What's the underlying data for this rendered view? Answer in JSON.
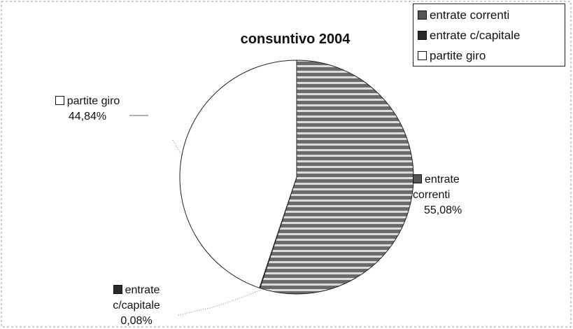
{
  "chart_data": {
    "type": "pie",
    "title": "consuntivo 2004",
    "categories": [
      "entrate correnti",
      "entrate c/capitale",
      "partite giro"
    ],
    "values": [
      55.08,
      0.08,
      44.84
    ],
    "value_labels": [
      "55,08%",
      "0,08%",
      "44,84%"
    ],
    "colors": [
      "#6a6a6a",
      "#2a2a2a",
      "#ffffff"
    ],
    "legend": "top-right"
  }
}
